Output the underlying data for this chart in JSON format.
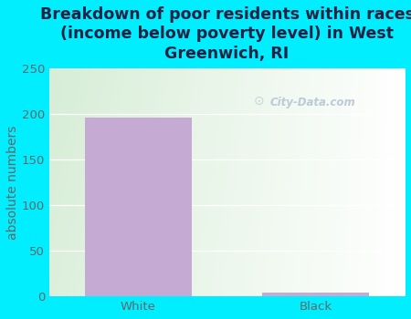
{
  "title": "Breakdown of poor residents within races\n(income below poverty level) in West\nGreenwich, RI",
  "categories": [
    "White",
    "Black"
  ],
  "values": [
    196,
    4
  ],
  "bar_color": "#c5aad4",
  "ylabel": "absolute numbers",
  "ylim": [
    0,
    250
  ],
  "yticks": [
    0,
    50,
    100,
    150,
    200,
    250
  ],
  "bg_outer": "#00eeff",
  "bg_plot_topleft": "#d6eed6",
  "bg_plot_topright": "#f0faf0",
  "bg_plot_bottomleft": "#c8e8c8",
  "bg_plot_bottomright": "#ffffff",
  "title_color": "#222244",
  "axis_color": "#666666",
  "watermark": "City-Data.com",
  "title_fontsize": 12.5,
  "label_fontsize": 10,
  "tick_fontsize": 9.5
}
